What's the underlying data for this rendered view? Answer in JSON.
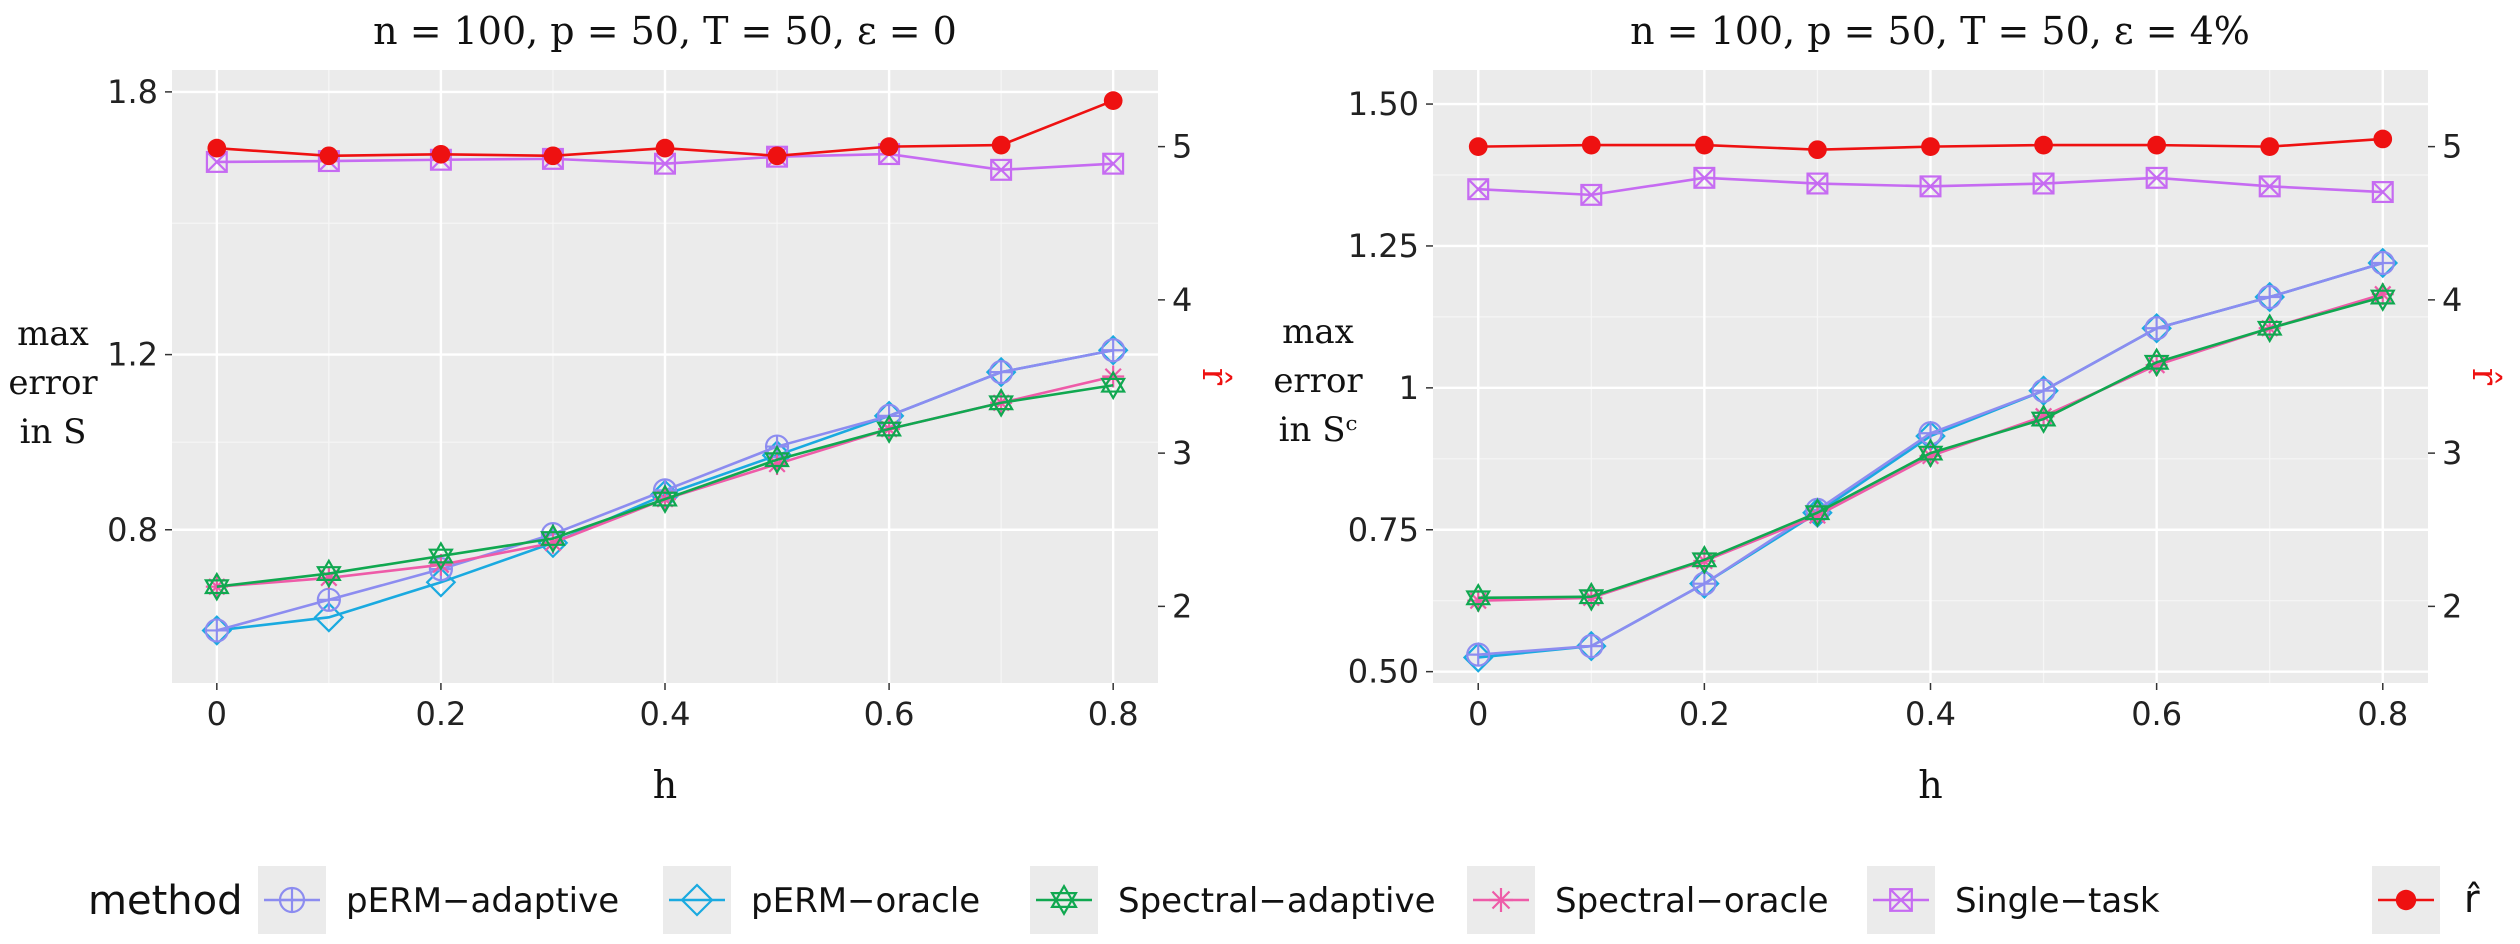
{
  "legend": {
    "title": "method",
    "items": [
      {
        "label": "pERM−adaptive",
        "color": "#8C8CF0",
        "marker": "circle-plus"
      },
      {
        "label": "pERM−oracle",
        "color": "#1AAAE0",
        "marker": "diamond"
      },
      {
        "label": "Spectral−adaptive",
        "color": "#10A850",
        "marker": "hexagram"
      },
      {
        "label": "Spectral−oracle",
        "color": "#EE5BA8",
        "marker": "asterisk"
      },
      {
        "label": "Single−task",
        "color": "#C66BF2",
        "marker": "square-x"
      }
    ],
    "rhat_label": "r̂",
    "rhat_color": "#EE1111"
  },
  "chart_data": [
    {
      "type": "line",
      "title": "n = 100, p = 50, T = 50, ε = 0",
      "xlabel": "h",
      "ylabel": [
        "max",
        "error",
        "in S"
      ],
      "y2label": "r̂",
      "x": [
        0,
        0.1,
        0.2,
        0.3,
        0.4,
        0.5,
        0.6,
        0.7,
        0.8
      ],
      "xticks": [
        0,
        0.2,
        0.4,
        0.6,
        0.8
      ],
      "xtick_labels": [
        "0",
        "0.2",
        "0.4",
        "0.6",
        "0.8"
      ],
      "xlim": [
        -0.04,
        0.84
      ],
      "ylim": [
        0.45,
        1.85
      ],
      "yticks": [
        0.8,
        1.2,
        1.8
      ],
      "ytick_labels": [
        "0.8",
        "1.2",
        "1.8"
      ],
      "y2lim": [
        1.5,
        5.5
      ],
      "y2ticks": [
        2,
        3,
        4,
        5
      ],
      "y2tick_labels": [
        "2",
        "3",
        "4",
        "5"
      ],
      "grid": true,
      "series": [
        {
          "name": "Single−task",
          "axis": "y",
          "values": [
            1.64,
            1.642,
            1.645,
            1.647,
            1.636,
            1.652,
            1.658,
            1.622,
            1.636
          ]
        },
        {
          "name": "pERM−oracle",
          "axis": "y",
          "values": [
            0.57,
            0.6,
            0.68,
            0.77,
            0.88,
            0.97,
            1.06,
            1.16,
            1.21
          ]
        },
        {
          "name": "pERM−adaptive",
          "axis": "y",
          "values": [
            0.57,
            0.64,
            0.71,
            0.79,
            0.89,
            0.99,
            1.06,
            1.16,
            1.21
          ]
        },
        {
          "name": "Spectral−oracle",
          "axis": "y",
          "values": [
            0.67,
            0.69,
            0.72,
            0.77,
            0.87,
            0.95,
            1.03,
            1.09,
            1.15
          ]
        },
        {
          "name": "Spectral−adaptive",
          "axis": "y",
          "values": [
            0.67,
            0.7,
            0.74,
            0.78,
            0.87,
            0.96,
            1.03,
            1.09,
            1.13
          ]
        },
        {
          "name": "r̂",
          "axis": "y2",
          "values": [
            4.99,
            4.94,
            4.95,
            4.94,
            4.99,
            4.94,
            5.0,
            5.01,
            5.3
          ]
        }
      ]
    },
    {
      "type": "line",
      "title": "n = 100, p = 50, T = 50, ε = 4%",
      "xlabel": "h",
      "ylabel": [
        "max",
        "error",
        "in Sᶜ"
      ],
      "y2label": "r̂",
      "x": [
        0,
        0.1,
        0.2,
        0.3,
        0.4,
        0.5,
        0.6,
        0.7,
        0.8
      ],
      "xticks": [
        0,
        0.2,
        0.4,
        0.6,
        0.8
      ],
      "xtick_labels": [
        "0",
        "0.2",
        "0.4",
        "0.6",
        "0.8"
      ],
      "xlim": [
        -0.04,
        0.84
      ],
      "ylim": [
        0.48,
        1.56
      ],
      "yticks": [
        0.5,
        0.75,
        1.0,
        1.25,
        1.5
      ],
      "ytick_labels": [
        "0.50",
        "0.75",
        "1",
        "1.25",
        "1.50"
      ],
      "y2lim": [
        1.5,
        5.5
      ],
      "y2ticks": [
        2,
        3,
        4,
        5
      ],
      "y2tick_labels": [
        "2",
        "3",
        "4",
        "5"
      ],
      "grid": true,
      "series": [
        {
          "name": "Single−task",
          "axis": "y",
          "values": [
            1.35,
            1.34,
            1.37,
            1.36,
            1.355,
            1.36,
            1.37,
            1.355,
            1.345
          ]
        },
        {
          "name": "pERM−oracle",
          "axis": "y",
          "values": [
            0.525,
            0.545,
            0.655,
            0.78,
            0.915,
            0.995,
            1.105,
            1.16,
            1.22
          ]
        },
        {
          "name": "pERM−adaptive",
          "axis": "y",
          "values": [
            0.53,
            0.545,
            0.655,
            0.785,
            0.92,
            0.995,
            1.105,
            1.16,
            1.22
          ]
        },
        {
          "name": "Spectral−oracle",
          "axis": "y",
          "values": [
            0.625,
            0.63,
            0.695,
            0.775,
            0.88,
            0.95,
            1.04,
            1.105,
            1.165
          ]
        },
        {
          "name": "Spectral−adaptive",
          "axis": "y",
          "values": [
            0.63,
            0.632,
            0.697,
            0.78,
            0.885,
            0.945,
            1.045,
            1.105,
            1.16
          ]
        },
        {
          "name": "r̂",
          "axis": "y2",
          "values": [
            5.0,
            5.01,
            5.01,
            4.98,
            5.0,
            5.01,
            5.01,
            5.0,
            5.05
          ]
        }
      ]
    }
  ]
}
